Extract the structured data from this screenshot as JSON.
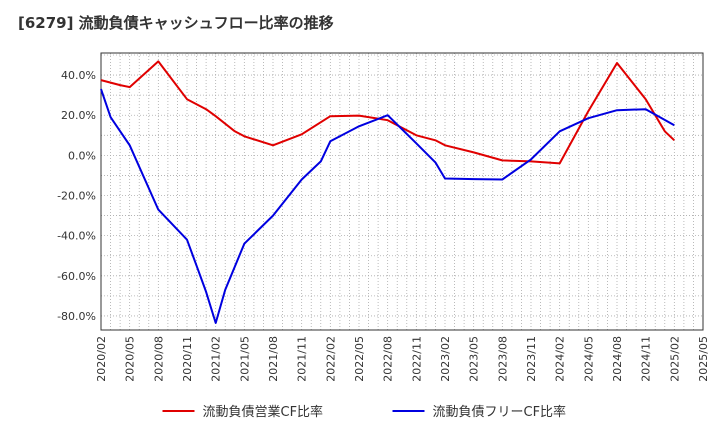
{
  "chart_data": {
    "type": "line",
    "title": "[6279]  流動負債キャッシュフロー比率の推移",
    "xlabel": "",
    "ylabel": "",
    "ylim": [
      -87,
      51
    ],
    "yticks": [
      40,
      20,
      0,
      -20,
      -40,
      -60,
      -80
    ],
    "ytick_labels": [
      "40.0%",
      "20.0%",
      "0.0%",
      "-20.0%",
      "-40.0%",
      "-60.0%",
      "-80.0%"
    ],
    "xticks": [
      "2020/02",
      "2020/05",
      "2020/08",
      "2020/11",
      "2021/02",
      "2021/05",
      "2021/08",
      "2021/11",
      "2022/02",
      "2022/05",
      "2022/08",
      "2022/11",
      "2023/02",
      "2023/05",
      "2023/08",
      "2023/11",
      "2024/02",
      "2024/05",
      "2024/08",
      "2024/11",
      "2025/02",
      "2025/05"
    ],
    "grid": true,
    "legend_position": "bottom",
    "series": [
      {
        "name": "流動負債営業CF比率",
        "color": "#e00000",
        "points": [
          [
            "2020/02",
            37.5
          ],
          [
            "2020/04",
            35.0
          ],
          [
            "2020/05",
            34.0
          ],
          [
            "2020/08",
            46.8
          ],
          [
            "2020/11",
            28.0
          ],
          [
            "2021/01",
            23.0
          ],
          [
            "2021/02",
            19.5
          ],
          [
            "2021/04",
            12.0
          ],
          [
            "2021/05",
            9.5
          ],
          [
            "2021/08",
            5.0
          ],
          [
            "2021/11",
            10.5
          ],
          [
            "2022/02",
            19.5
          ],
          [
            "2022/05",
            19.8
          ],
          [
            "2022/08",
            17.5
          ],
          [
            "2022/11",
            10.0
          ],
          [
            "2023/01",
            7.5
          ],
          [
            "2023/02",
            5.0
          ],
          [
            "2023/05",
            1.5
          ],
          [
            "2023/08",
            -2.5
          ],
          [
            "2023/11",
            -3.0
          ],
          [
            "2024/02",
            -4.0
          ],
          [
            "2024/05",
            22.0
          ],
          [
            "2024/08",
            46.0
          ],
          [
            "2024/11",
            28.0
          ],
          [
            "2025/01",
            12.0
          ],
          [
            "2025/02",
            7.5
          ]
        ]
      },
      {
        "name": "流動負債フリーCF比率",
        "color": "#0000e0",
        "points": [
          [
            "2020/02",
            33.0
          ],
          [
            "2020/03",
            19.0
          ],
          [
            "2020/05",
            5.0
          ],
          [
            "2020/08",
            -27.0
          ],
          [
            "2020/11",
            -42.0
          ],
          [
            "2020/12",
            -55.0
          ],
          [
            "2021/01",
            -68.0
          ],
          [
            "2021/02",
            -83.5
          ],
          [
            "2021/03",
            -67.0
          ],
          [
            "2021/05",
            -44.0
          ],
          [
            "2021/08",
            -30.0
          ],
          [
            "2021/11",
            -12.0
          ],
          [
            "2022/01",
            -3.0
          ],
          [
            "2022/02",
            7.0
          ],
          [
            "2022/05",
            14.5
          ],
          [
            "2022/08",
            20.0
          ],
          [
            "2022/11",
            6.0
          ],
          [
            "2023/01",
            -3.5
          ],
          [
            "2023/02",
            -11.5
          ],
          [
            "2023/05",
            -11.8
          ],
          [
            "2023/08",
            -12.0
          ],
          [
            "2023/11",
            -2.0
          ],
          [
            "2024/02",
            12.0
          ],
          [
            "2024/05",
            18.5
          ],
          [
            "2024/08",
            22.5
          ],
          [
            "2024/11",
            23.0
          ],
          [
            "2025/02",
            15.0
          ]
        ]
      }
    ]
  }
}
